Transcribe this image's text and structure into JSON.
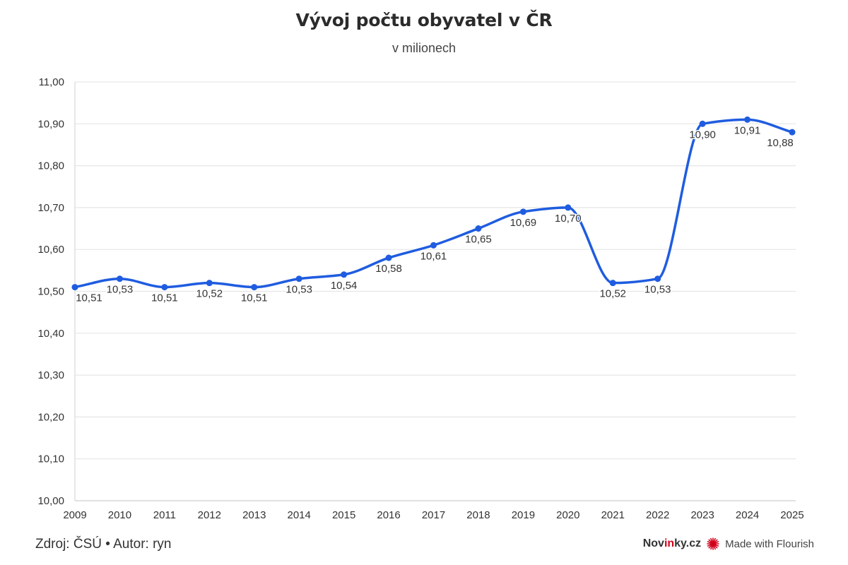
{
  "header": {
    "title": "Vývoj počtu obyvatel v ČR",
    "subtitle": "v milionech"
  },
  "footer": {
    "source": "Zdroj: ČSÚ • Autor: ryn",
    "brand_prefix": "Nov",
    "brand_accent": "in",
    "brand_suffix": "ky.cz",
    "flourish_label": "Made with Flourish",
    "flourish_icon": "flourish-burst-icon"
  },
  "colors": {
    "line": "#1f5ce0",
    "grid": "#e6e6e6",
    "accent_red": "#d0021b"
  },
  "chart_data": {
    "type": "line",
    "title": "Vývoj počtu obyvatel v ČR",
    "subtitle": "v milionech",
    "xlabel": "",
    "ylabel": "",
    "ylim": [
      10.0,
      11.0
    ],
    "yticks": [
      "10,00",
      "10,10",
      "10,20",
      "10,30",
      "10,40",
      "10,50",
      "10,60",
      "10,70",
      "10,80",
      "10,90",
      "11,00"
    ],
    "categories": [
      "2009",
      "2010",
      "2011",
      "2012",
      "2013",
      "2014",
      "2015",
      "2016",
      "2017",
      "2018",
      "2019",
      "2020",
      "2021",
      "2022",
      "2023",
      "2024",
      "2025"
    ],
    "values": [
      10.51,
      10.53,
      10.51,
      10.52,
      10.51,
      10.53,
      10.54,
      10.58,
      10.61,
      10.65,
      10.69,
      10.7,
      10.52,
      10.53,
      10.9,
      10.91,
      10.88
    ],
    "data_labels": [
      "10,51",
      "10,53",
      "10,51",
      "10,52",
      "10,51",
      "10,53",
      "10,54",
      "10,58",
      "10,61",
      "10,65",
      "10,69",
      "10,70",
      "10,52",
      "10,53",
      "10,90",
      "10,91",
      "10,88"
    ],
    "grid": true,
    "legend": "none"
  }
}
